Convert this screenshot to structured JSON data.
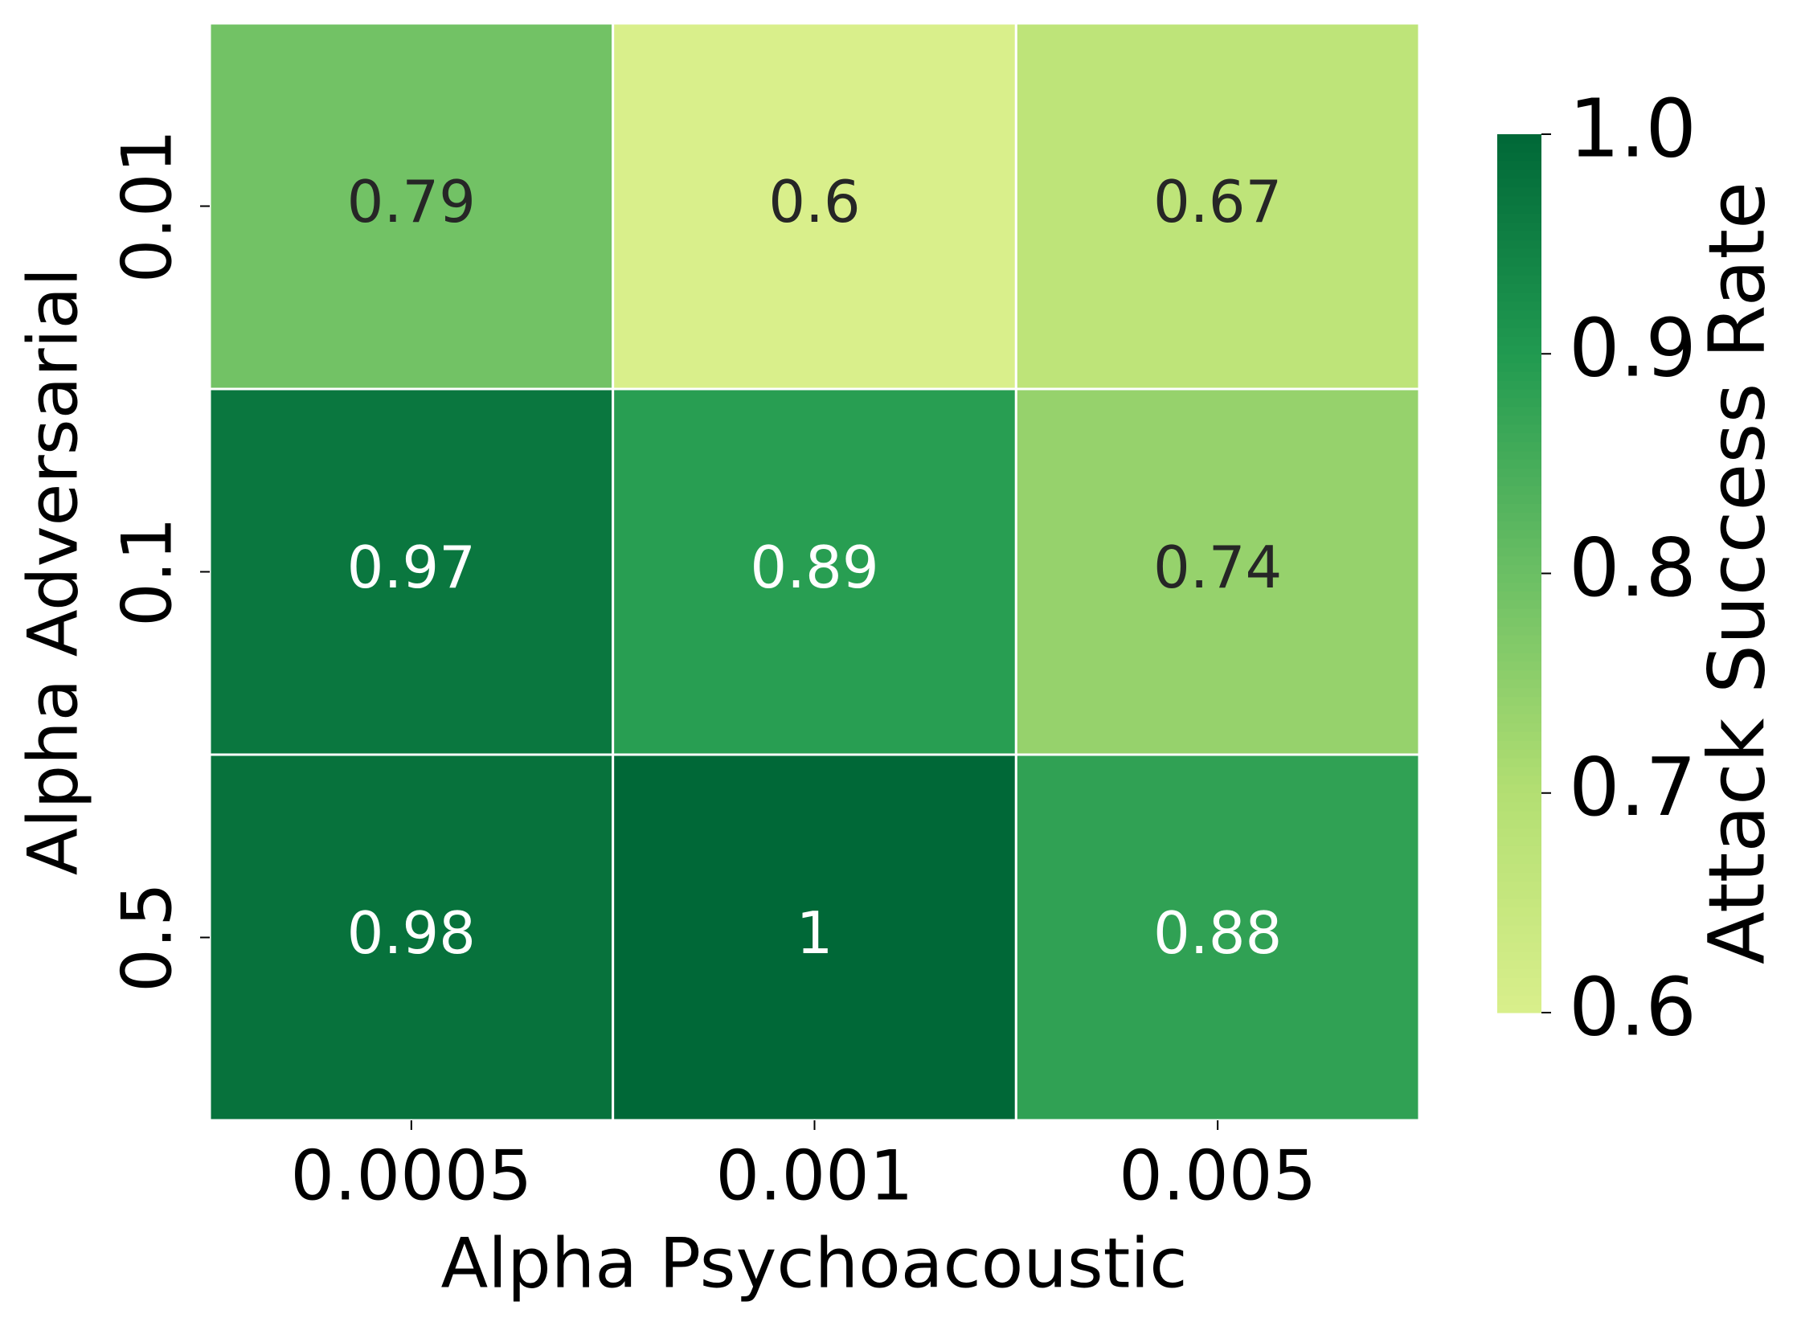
{
  "chart_data": {
    "type": "heatmap",
    "x_label": "Alpha Psychoacoustic",
    "y_label": "Alpha Adversarial",
    "colorbar_label": "Attack Success Rate",
    "x_categories": [
      "0.0005",
      "0.001",
      "0.005"
    ],
    "y_categories": [
      "0.01",
      "0.1",
      "0.5"
    ],
    "values": [
      [
        0.79,
        0.6,
        0.67
      ],
      [
        0.97,
        0.89,
        0.74
      ],
      [
        0.98,
        1,
        0.88
      ]
    ],
    "clim": [
      0.6,
      1.0
    ],
    "cticks": [
      0.6,
      0.7,
      0.8,
      0.9,
      {
        "value": 1.0,
        "label": "1.0"
      }
    ],
    "colorscale": [
      "#d9ef8b",
      "#b3df72",
      "#6bbf64",
      "#219a50",
      "#006837"
    ]
  }
}
